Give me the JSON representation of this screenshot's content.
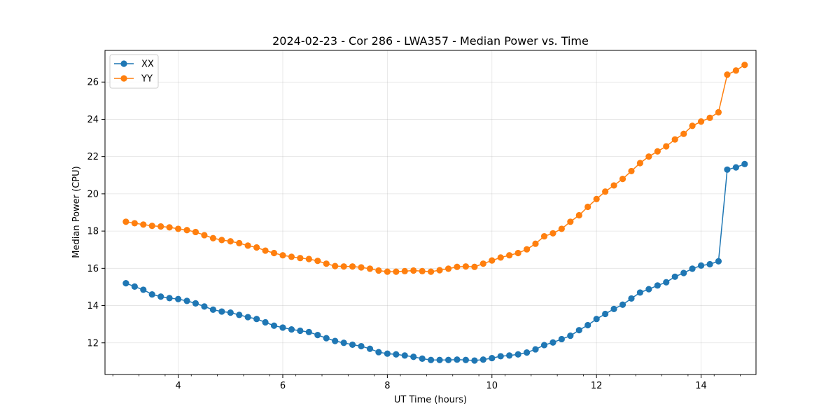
{
  "chart_data": {
    "type": "line",
    "title": "2024-02-23 - Cor 286 - LWA357 - Median Power vs. Time",
    "xlabel": "UT Time (hours)",
    "ylabel": "Median Power (CPU)",
    "xlim": [
      2.6,
      15.05
    ],
    "ylim": [
      10.3,
      27.7
    ],
    "xticks": [
      4,
      6,
      8,
      10,
      12,
      14
    ],
    "yticks": [
      12,
      14,
      16,
      18,
      20,
      22,
      24,
      26
    ],
    "grid": true,
    "legend_position": "top-left",
    "x": [
      3.0,
      3.167,
      3.333,
      3.5,
      3.667,
      3.833,
      4.0,
      4.167,
      4.333,
      4.5,
      4.667,
      4.833,
      5.0,
      5.167,
      5.333,
      5.5,
      5.667,
      5.833,
      6.0,
      6.167,
      6.333,
      6.5,
      6.667,
      6.833,
      7.0,
      7.167,
      7.333,
      7.5,
      7.667,
      7.833,
      8.0,
      8.167,
      8.333,
      8.5,
      8.667,
      8.833,
      9.0,
      9.167,
      9.333,
      9.5,
      9.667,
      9.833,
      10.0,
      10.167,
      10.333,
      10.5,
      10.667,
      10.833,
      11.0,
      11.167,
      11.333,
      11.5,
      11.667,
      11.833,
      12.0,
      12.167,
      12.333,
      12.5,
      12.667,
      12.833,
      13.0,
      13.167,
      13.333,
      13.5,
      13.667,
      13.833,
      14.0,
      14.167,
      14.333,
      14.5,
      14.667,
      14.833
    ],
    "series": [
      {
        "name": "XX",
        "color": "#1f77b4",
        "values": [
          15.2,
          15.02,
          14.85,
          14.6,
          14.48,
          14.4,
          14.35,
          14.25,
          14.12,
          13.95,
          13.78,
          13.68,
          13.62,
          13.5,
          13.38,
          13.28,
          13.1,
          12.92,
          12.82,
          12.72,
          12.65,
          12.58,
          12.42,
          12.25,
          12.1,
          12.0,
          11.9,
          11.82,
          11.68,
          11.5,
          11.42,
          11.38,
          11.32,
          11.25,
          11.15,
          11.08,
          11.08,
          11.08,
          11.1,
          11.08,
          11.05,
          11.1,
          11.18,
          11.28,
          11.32,
          11.38,
          11.48,
          11.65,
          11.88,
          12.02,
          12.2,
          12.38,
          12.68,
          12.95,
          13.28,
          13.55,
          13.82,
          14.05,
          14.38,
          14.7,
          14.88,
          15.08,
          15.25,
          15.55,
          15.75,
          15.98,
          16.15,
          16.22,
          16.38,
          21.3,
          21.42,
          21.6
        ]
      },
      {
        "name": "YY",
        "color": "#ff7f0e",
        "values": [
          18.5,
          18.42,
          18.35,
          18.28,
          18.25,
          18.2,
          18.12,
          18.05,
          17.95,
          17.78,
          17.62,
          17.52,
          17.45,
          17.35,
          17.22,
          17.12,
          16.95,
          16.82,
          16.7,
          16.62,
          16.55,
          16.5,
          16.4,
          16.25,
          16.12,
          16.1,
          16.1,
          16.05,
          15.98,
          15.88,
          15.82,
          15.82,
          15.85,
          15.88,
          15.85,
          15.82,
          15.9,
          15.98,
          16.08,
          16.1,
          16.08,
          16.25,
          16.42,
          16.58,
          16.7,
          16.82,
          17.02,
          17.32,
          17.72,
          17.88,
          18.12,
          18.5,
          18.85,
          19.3,
          19.72,
          20.12,
          20.45,
          20.8,
          21.22,
          21.65,
          22.0,
          22.28,
          22.55,
          22.92,
          23.22,
          23.65,
          23.88,
          24.08,
          24.38,
          26.4,
          26.62,
          26.92
        ]
      }
    ]
  }
}
